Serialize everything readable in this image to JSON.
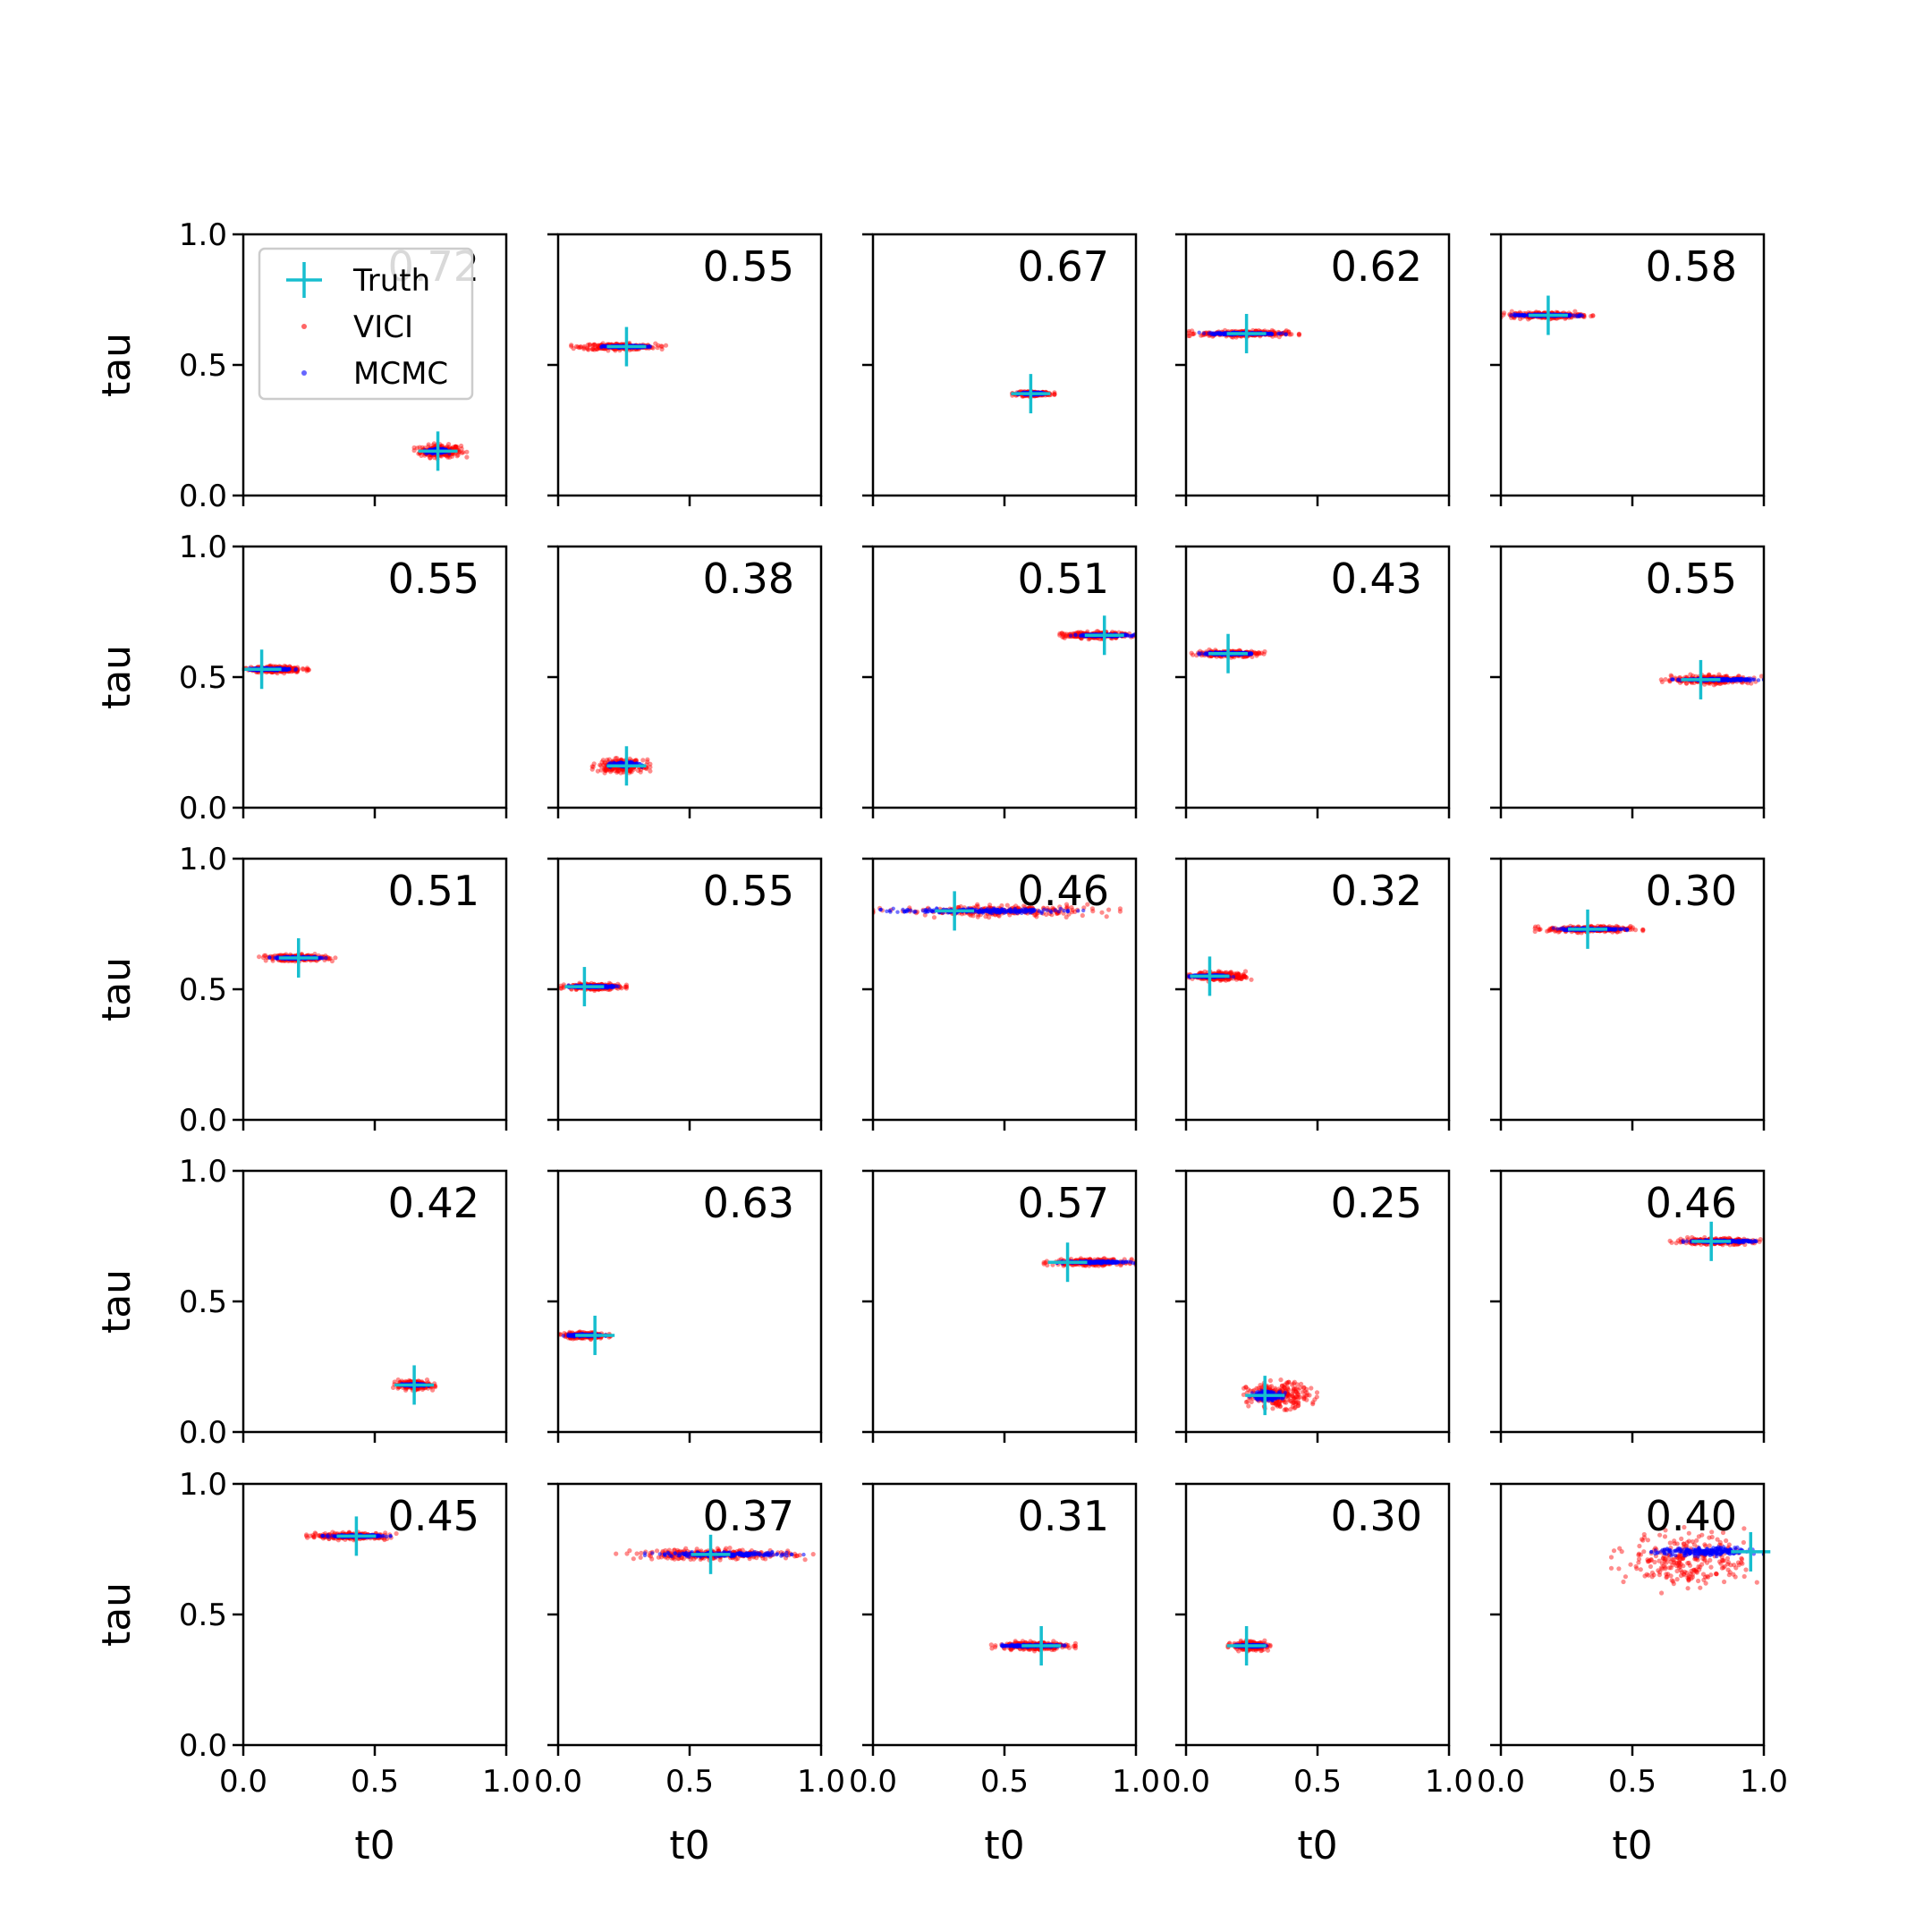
{
  "chart_data": {
    "type": "scatter",
    "layout": {
      "rows": 5,
      "cols": 5
    },
    "xlabel": "t0",
    "ylabel": "tau",
    "xlim": [
      0,
      1
    ],
    "ylim": [
      0,
      1
    ],
    "x_ticks": [
      0,
      0.5,
      1
    ],
    "x_tick_labels": [
      "0.0",
      "0.5",
      "1.0"
    ],
    "y_ticks": [
      0,
      0.5,
      1
    ],
    "y_tick_labels": [
      "0.0",
      "0.5",
      "1.0"
    ],
    "grid": false,
    "legend": {
      "placement": "top-left of first panel",
      "entries": [
        {
          "name": "Truth",
          "marker": "plus",
          "color": "#17becf"
        },
        {
          "name": "VICI",
          "marker": "dot",
          "color": "#ff0000"
        },
        {
          "name": "MCMC",
          "marker": "dot",
          "color": "#0000ff"
        }
      ]
    },
    "colors": {
      "truth": "#17becf",
      "vici": "#ff0000",
      "mcmc": "#0000ff"
    },
    "panels": [
      {
        "score": "0.72",
        "truth": [
          0.74,
          0.17
        ],
        "vici": {
          "x": [
            0.65,
            0.85
          ],
          "y": [
            0.14,
            0.2
          ]
        },
        "mcmc": {
          "x": [
            0.69,
            0.79
          ],
          "y": [
            0.16,
            0.18
          ]
        }
      },
      {
        "score": "0.55",
        "truth": [
          0.26,
          0.57
        ],
        "vici": {
          "x": [
            0.05,
            0.41
          ],
          "y": [
            0.555,
            0.585
          ]
        },
        "mcmc": {
          "x": [
            0.15,
            0.36
          ],
          "y": [
            0.565,
            0.575
          ]
        }
      },
      {
        "score": "0.67",
        "truth": [
          0.6,
          0.39
        ],
        "vici": {
          "x": [
            0.53,
            0.69
          ],
          "y": [
            0.38,
            0.4
          ]
        },
        "mcmc": {
          "x": [
            0.55,
            0.66
          ],
          "y": [
            0.385,
            0.395
          ]
        }
      },
      {
        "score": "0.62",
        "truth": [
          0.23,
          0.62
        ],
        "vici": {
          "x": [
            0.01,
            0.43
          ],
          "y": [
            0.605,
            0.635
          ]
        },
        "mcmc": {
          "x": [
            0.05,
            0.38
          ],
          "y": [
            0.615,
            0.625
          ]
        }
      },
      {
        "score": "0.58",
        "truth": [
          0.18,
          0.69
        ],
        "vici": {
          "x": [
            0.0,
            0.35
          ],
          "y": [
            0.675,
            0.705
          ]
        },
        "mcmc": {
          "x": [
            0.02,
            0.31
          ],
          "y": [
            0.685,
            0.695
          ]
        }
      },
      {
        "score": "0.55",
        "truth": [
          0.07,
          0.53
        ],
        "vici": {
          "x": [
            0.0,
            0.25
          ],
          "y": [
            0.515,
            0.545
          ]
        },
        "mcmc": {
          "x": [
            0.0,
            0.21
          ],
          "y": [
            0.525,
            0.535
          ]
        }
      },
      {
        "score": "0.38",
        "truth": [
          0.26,
          0.16
        ],
        "vici": {
          "x": [
            0.13,
            0.35
          ],
          "y": [
            0.13,
            0.19
          ]
        },
        "mcmc": {
          "x": [
            0.19,
            0.32
          ],
          "y": [
            0.155,
            0.175
          ]
        }
      },
      {
        "score": "0.51",
        "truth": [
          0.88,
          0.66
        ],
        "vici": {
          "x": [
            0.69,
            1.0
          ],
          "y": [
            0.645,
            0.675
          ]
        },
        "mcmc": {
          "x": [
            0.75,
            1.0
          ],
          "y": [
            0.655,
            0.665
          ]
        }
      },
      {
        "score": "0.43",
        "truth": [
          0.16,
          0.59
        ],
        "vici": {
          "x": [
            0.01,
            0.31
          ],
          "y": [
            0.575,
            0.605
          ]
        },
        "mcmc": {
          "x": [
            0.04,
            0.27
          ],
          "y": [
            0.585,
            0.595
          ]
        }
      },
      {
        "score": "0.55",
        "truth": [
          0.76,
          0.49
        ],
        "vici": {
          "x": [
            0.61,
            1.0
          ],
          "y": [
            0.47,
            0.51
          ]
        },
        "mcmc": {
          "x": [
            0.65,
            1.0
          ],
          "y": [
            0.485,
            0.495
          ]
        }
      },
      {
        "score": "0.51",
        "truth": [
          0.21,
          0.62
        ],
        "vici": {
          "x": [
            0.06,
            0.35
          ],
          "y": [
            0.605,
            0.635
          ]
        },
        "mcmc": {
          "x": [
            0.1,
            0.32
          ],
          "y": [
            0.615,
            0.625
          ]
        }
      },
      {
        "score": "0.55",
        "truth": [
          0.1,
          0.51
        ],
        "vici": {
          "x": [
            0.01,
            0.26
          ],
          "y": [
            0.495,
            0.525
          ]
        },
        "mcmc": {
          "x": [
            0.03,
            0.23
          ],
          "y": [
            0.505,
            0.515
          ]
        }
      },
      {
        "score": "0.46",
        "truth": [
          0.31,
          0.8
        ],
        "vici": {
          "x": [
            0.0,
            0.94
          ],
          "y": [
            0.775,
            0.825
          ]
        },
        "mcmc": {
          "x": [
            0.0,
            0.8
          ],
          "y": [
            0.79,
            0.81
          ]
        }
      },
      {
        "score": "0.32",
        "truth": [
          0.09,
          0.55
        ],
        "vici": {
          "x": [
            0.0,
            0.26
          ],
          "y": [
            0.53,
            0.57
          ]
        },
        "mcmc": {
          "x": [
            0.0,
            0.18
          ],
          "y": [
            0.545,
            0.555
          ]
        }
      },
      {
        "score": "0.30",
        "truth": [
          0.33,
          0.73
        ],
        "vici": {
          "x": [
            0.13,
            0.54
          ],
          "y": [
            0.715,
            0.745
          ]
        },
        "mcmc": {
          "x": [
            0.2,
            0.48
          ],
          "y": [
            0.725,
            0.735
          ]
        }
      },
      {
        "score": "0.42",
        "truth": [
          0.65,
          0.18
        ],
        "vici": {
          "x": [
            0.57,
            0.73
          ],
          "y": [
            0.16,
            0.2
          ]
        },
        "mcmc": {
          "x": [
            0.59,
            0.71
          ],
          "y": [
            0.175,
            0.185
          ]
        }
      },
      {
        "score": "0.63",
        "truth": [
          0.14,
          0.37
        ],
        "vici": {
          "x": [
            0.0,
            0.2
          ],
          "y": [
            0.355,
            0.385
          ]
        },
        "mcmc": {
          "x": [
            0.02,
            0.19
          ],
          "y": [
            0.365,
            0.375
          ]
        }
      },
      {
        "score": "0.57",
        "truth": [
          0.74,
          0.65
        ],
        "vici": {
          "x": [
            0.65,
            1.0
          ],
          "y": [
            0.635,
            0.665
          ]
        },
        "mcmc": {
          "x": [
            0.7,
            1.0
          ],
          "y": [
            0.645,
            0.655
          ]
        }
      },
      {
        "score": "0.25",
        "truth": [
          0.3,
          0.14
        ],
        "vici": {
          "x": [
            0.2,
            0.5
          ],
          "y": [
            0.08,
            0.2
          ]
        },
        "mcmc": {
          "x": [
            0.24,
            0.38
          ],
          "y": [
            0.12,
            0.16
          ]
        }
      },
      {
        "score": "0.46",
        "truth": [
          0.8,
          0.73
        ],
        "vici": {
          "x": [
            0.63,
            1.0
          ],
          "y": [
            0.715,
            0.745
          ]
        },
        "mcmc": {
          "x": [
            0.68,
            1.0
          ],
          "y": [
            0.725,
            0.735
          ]
        }
      },
      {
        "score": "0.45",
        "truth": [
          0.43,
          0.8
        ],
        "vici": {
          "x": [
            0.24,
            0.59
          ],
          "y": [
            0.785,
            0.815
          ]
        },
        "mcmc": {
          "x": [
            0.3,
            0.56
          ],
          "y": [
            0.795,
            0.805
          ]
        }
      },
      {
        "score": "0.37",
        "truth": [
          0.58,
          0.73
        ],
        "vici": {
          "x": [
            0.22,
            0.97
          ],
          "y": [
            0.705,
            0.755
          ]
        },
        "mcmc": {
          "x": [
            0.33,
            0.95
          ],
          "y": [
            0.72,
            0.74
          ]
        }
      },
      {
        "score": "0.31",
        "truth": [
          0.64,
          0.38
        ],
        "vici": {
          "x": [
            0.45,
            0.77
          ],
          "y": [
            0.36,
            0.4
          ]
        },
        "mcmc": {
          "x": [
            0.48,
            0.73
          ],
          "y": [
            0.375,
            0.385
          ]
        }
      },
      {
        "score": "0.30",
        "truth": [
          0.23,
          0.38
        ],
        "vici": {
          "x": [
            0.16,
            0.32
          ],
          "y": [
            0.36,
            0.4
          ]
        },
        "mcmc": {
          "x": [
            0.18,
            0.31
          ],
          "y": [
            0.375,
            0.385
          ]
        }
      },
      {
        "score": "0.40",
        "truth": [
          0.95,
          0.74
        ],
        "vici": {
          "x": [
            0.42,
            1.0
          ],
          "y": [
            0.58,
            0.84
          ]
        },
        "mcmc": {
          "x": [
            0.55,
            1.0
          ],
          "y": [
            0.72,
            0.76
          ]
        }
      }
    ]
  }
}
